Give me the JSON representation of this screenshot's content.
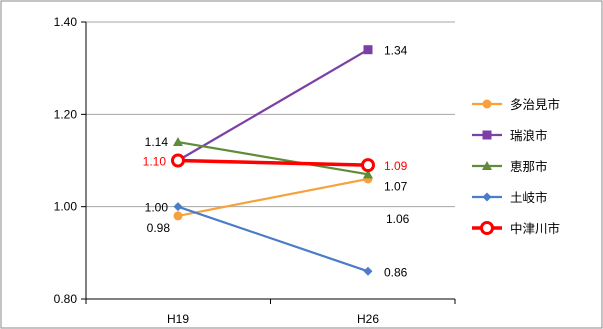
{
  "chart_data": {
    "type": "line",
    "title": "",
    "xlabel": "",
    "ylabel": "",
    "categories": [
      "H19",
      "H26"
    ],
    "ylim": [
      0.8,
      1.4
    ],
    "yticks": [
      "0.80",
      "1.00",
      "1.20",
      "1.40"
    ],
    "grid": true,
    "legend_position": "right",
    "series": [
      {
        "name": "多治見市",
        "values": [
          0.98,
          1.06
        ],
        "labels": [
          "0.98",
          "1.06"
        ],
        "color": "#f7a13c",
        "marker": "circle"
      },
      {
        "name": "瑞浪市",
        "values": [
          1.1,
          1.34
        ],
        "labels": [
          "",
          "1.34"
        ],
        "color": "#7b3fa6",
        "marker": "square"
      },
      {
        "name": "恵那市",
        "values": [
          1.14,
          1.07
        ],
        "labels": [
          "1.14",
          "1.07"
        ],
        "color": "#5e8c3a",
        "marker": "triangle"
      },
      {
        "name": "土岐市",
        "values": [
          1.0,
          0.86
        ],
        "labels": [
          "1.00",
          "0.86"
        ],
        "color": "#4a7cc7",
        "marker": "diamond"
      },
      {
        "name": "中津川市",
        "values": [
          1.1,
          1.09
        ],
        "labels": [
          "1.10",
          "1.09"
        ],
        "color": "#ff0000",
        "marker": "hollow-circle",
        "label_color": "#ff0000"
      }
    ]
  }
}
